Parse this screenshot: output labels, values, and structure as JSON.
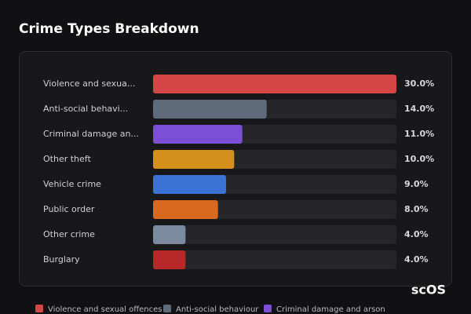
{
  "chart_data": {
    "type": "bar",
    "orientation": "horizontal",
    "title": "Crime Types Breakdown",
    "categories": [
      "Violence and sexua...",
      "Anti-social behavi...",
      "Criminal damage an...",
      "Other theft",
      "Vehicle crime",
      "Public order",
      "Other crime",
      "Burglary"
    ],
    "values": [
      30,
      14,
      11,
      10,
      9,
      8,
      4,
      4
    ],
    "value_labels": [
      "30.0%",
      "14.0%",
      "11.0%",
      "10.0%",
      "9.0%",
      "8.0%",
      "4.0%",
      "4.0%"
    ],
    "colors": [
      "#d64545",
      "#5f6b7a",
      "#7b4fd6",
      "#d4901a",
      "#3a72d6",
      "#d9691f",
      "#7c8aa0",
      "#b82828"
    ],
    "xlim": [
      0,
      30
    ],
    "legend": [
      "Violence and sexual offences",
      "Anti-social behaviour",
      "Criminal damage and arson"
    ],
    "watermark": "scOS"
  }
}
